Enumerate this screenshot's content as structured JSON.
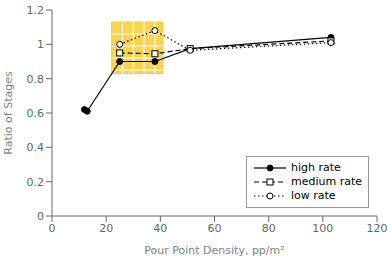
{
  "chart_data": {
    "type": "line",
    "xlabel": "Pour Point Density, pp/m²",
    "ylabel": "Ratio of Stages",
    "xlim": [
      0,
      120
    ],
    "ylim": [
      0,
      1.2
    ],
    "xticks": [
      0,
      20,
      40,
      60,
      80,
      100,
      120
    ],
    "yticks": [
      0,
      0.2,
      0.4,
      0.6,
      0.8,
      1.0,
      1.2
    ],
    "grid": false,
    "legend": "lower right",
    "series": [
      {
        "name": "high rate",
        "color": "black",
        "line_style": "solid",
        "marker": "filled_circle",
        "x": [
          12,
          13,
          25,
          38,
          51,
          103
        ],
        "values": [
          0.62,
          0.61,
          0.9,
          0.9,
          0.975,
          1.04
        ]
      },
      {
        "name": "medium rate",
        "color": "black",
        "line_style": "dashed",
        "marker": "open_square",
        "x": [
          25,
          38,
          51,
          103
        ],
        "values": [
          0.95,
          0.945,
          0.975,
          1.02
        ]
      },
      {
        "name": "low rate",
        "color": "black",
        "line_style": "dotted",
        "marker": "open_circle",
        "x": [
          25,
          38,
          51,
          103
        ],
        "values": [
          1.0,
          1.08,
          0.965,
          1.01
        ]
      }
    ],
    "highlight": {
      "x": [
        22,
        41
      ],
      "y": [
        0.83,
        1.13
      ],
      "color": "#f5c518",
      "grid_x": [
        26,
        30,
        34,
        38
      ],
      "grid_y": [
        0.85,
        0.92,
        0.99,
        1.06
      ],
      "grid_color": "white"
    }
  }
}
